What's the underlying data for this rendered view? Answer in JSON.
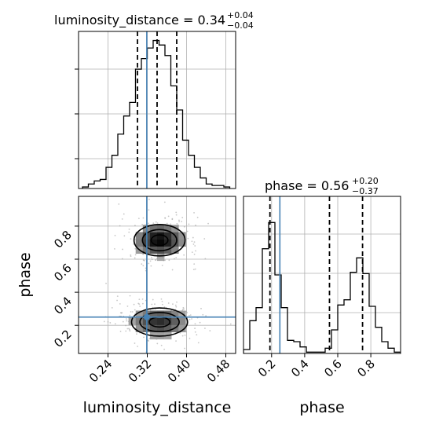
{
  "chart_data": {
    "type": "corner",
    "parameters": [
      {
        "name": "luminosity_distance",
        "axis_label": "luminosity_distance",
        "median": "0.34",
        "upper": "+0.04",
        "lower": "−0.04",
        "title_prefix": "luminosity_distance = 0.34",
        "range": [
          0.18,
          0.5
        ],
        "ticks": [
          "0.24",
          "0.32",
          "0.40",
          "0.48"
        ],
        "tick_values": [
          0.24,
          0.32,
          0.4,
          0.48
        ],
        "quantiles": [
          0.3,
          0.34,
          0.38
        ],
        "truth": 0.319
      },
      {
        "name": "phase",
        "axis_label": "phase",
        "median": "0.56",
        "upper": "+0.20",
        "lower": "−0.37",
        "title_prefix": "phase = 0.56",
        "range": [
          0.03,
          0.98
        ],
        "ticks": [
          "0.2",
          "0.4",
          "0.6",
          "0.8"
        ],
        "tick_values": [
          0.2,
          0.4,
          0.6,
          0.8
        ],
        "quantiles": [
          0.19,
          0.55,
          0.75
        ],
        "truth": 0.25
      }
    ],
    "y_axis_label": "phase",
    "hist_1d": [
      {
        "param": "luminosity_distance",
        "bin_edges": [
          0.188,
          0.2,
          0.212,
          0.224,
          0.236,
          0.248,
          0.26,
          0.272,
          0.284,
          0.296,
          0.308,
          0.32,
          0.332,
          0.344,
          0.356,
          0.368,
          0.38,
          0.392,
          0.404,
          0.416,
          0.428,
          0.44,
          0.452,
          0.464,
          0.476,
          0.488
        ],
        "counts": [
          0.01,
          0.03,
          0.05,
          0.06,
          0.14,
          0.22,
          0.36,
          0.48,
          0.57,
          0.79,
          0.86,
          0.93,
          0.98,
          0.95,
          0.88,
          0.68,
          0.52,
          0.32,
          0.22,
          0.14,
          0.07,
          0.03,
          0.02,
          0.02,
          0.01
        ]
      },
      {
        "param": "phase",
        "bin_edges": [
          0.03,
          0.068,
          0.106,
          0.144,
          0.182,
          0.22,
          0.258,
          0.296,
          0.334,
          0.372,
          0.41,
          0.448,
          0.486,
          0.524,
          0.562,
          0.6,
          0.638,
          0.676,
          0.714,
          0.752,
          0.79,
          0.828,
          0.866,
          0.904,
          0.942,
          0.98
        ],
        "counts": [
          0.03,
          0.25,
          0.35,
          0.8,
          1.0,
          0.6,
          0.35,
          0.1,
          0.09,
          0.05,
          0.01,
          0.01,
          0.01,
          0.04,
          0.18,
          0.37,
          0.41,
          0.62,
          0.73,
          0.61,
          0.36,
          0.2,
          0.09,
          0.04,
          0.01
        ]
      }
    ],
    "hist_2d_blobs": [
      {
        "center": [
          0.345,
          0.715
        ],
        "sigma": [
          0.035,
          0.065
        ],
        "weight": 0.55
      },
      {
        "center": [
          0.345,
          0.22
        ],
        "sigma": [
          0.04,
          0.06
        ],
        "weight": 0.45
      }
    ],
    "contours_2d": [
      {
        "center": [
          0.345,
          0.715
        ],
        "radii": [
          [
            0.017,
            0.032
          ],
          [
            0.035,
            0.064
          ],
          [
            0.052,
            0.095
          ]
        ]
      },
      {
        "center": [
          0.345,
          0.22
        ],
        "radii": [
          [
            0.021,
            0.03
          ],
          [
            0.04,
            0.058
          ],
          [
            0.057,
            0.085
          ]
        ]
      }
    ],
    "truth_point": [
      0.319,
      0.25
    ],
    "grid": true
  }
}
